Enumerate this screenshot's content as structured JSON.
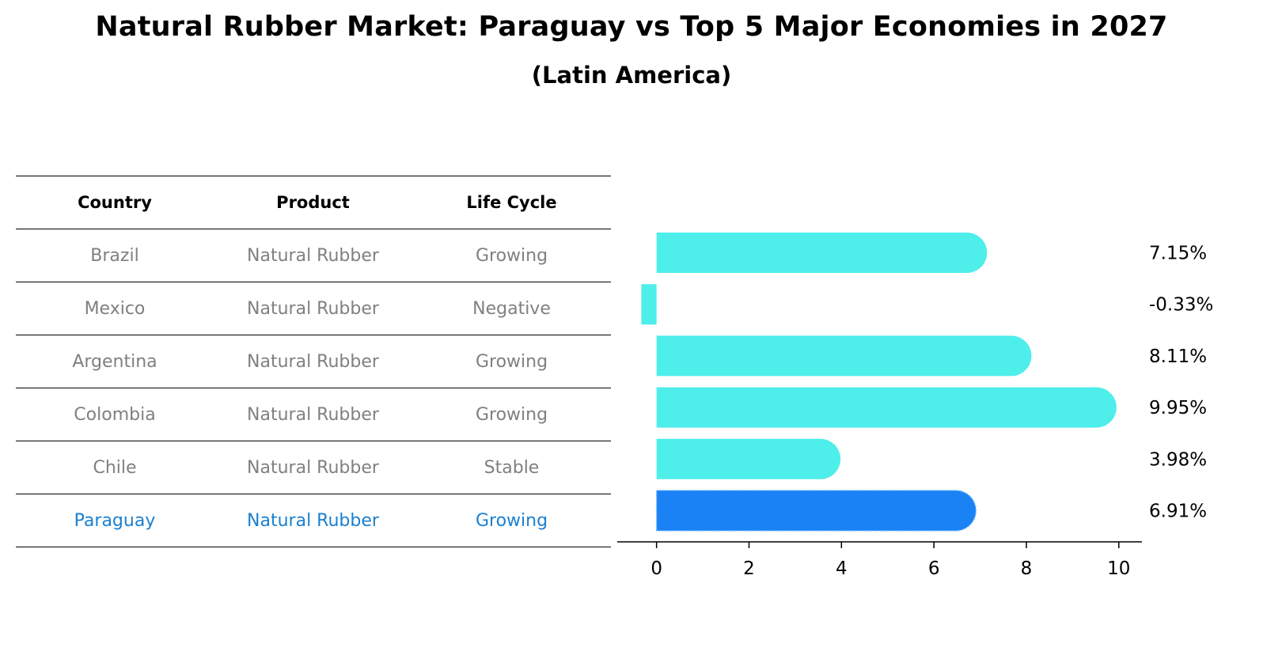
{
  "title": "Natural Rubber Market: Paraguay vs Top 5 Major Economies in 2027",
  "subtitle": "(Latin America)",
  "table": {
    "headers": [
      "Country",
      "Product",
      "Life Cycle"
    ],
    "rows": [
      [
        "Brazil",
        "Natural Rubber",
        "Growing"
      ],
      [
        "Mexico",
        "Natural Rubber",
        "Negative"
      ],
      [
        "Argentina",
        "Natural Rubber",
        "Growing"
      ],
      [
        "Colombia",
        "Natural Rubber",
        "Growing"
      ],
      [
        "Chile",
        "Natural Rubber",
        "Stable"
      ],
      [
        "Paraguay",
        "Natural Rubber",
        "Growing"
      ]
    ],
    "highlight_color": "#1a80d0",
    "text_color": "#808080"
  },
  "chart_data": {
    "type": "bar",
    "orientation": "horizontal",
    "categories": [
      "Brazil",
      "Mexico",
      "Argentina",
      "Colombia",
      "Chile",
      "Paraguay"
    ],
    "values": [
      7.15,
      -0.33,
      8.11,
      9.95,
      3.98,
      6.91
    ],
    "value_labels": [
      "7.15%",
      "-0.33%",
      "8.11%",
      "9.95%",
      "3.98%",
      "6.91%"
    ],
    "highlight_index": 5,
    "bar_color": "#4eeeea",
    "highlight_color": "#1a82f5",
    "xlim": [
      -0.85,
      10.5
    ],
    "xticks": [
      0,
      2,
      4,
      6,
      8,
      10
    ],
    "xlabel": "",
    "ylabel": "",
    "grid": false
  }
}
